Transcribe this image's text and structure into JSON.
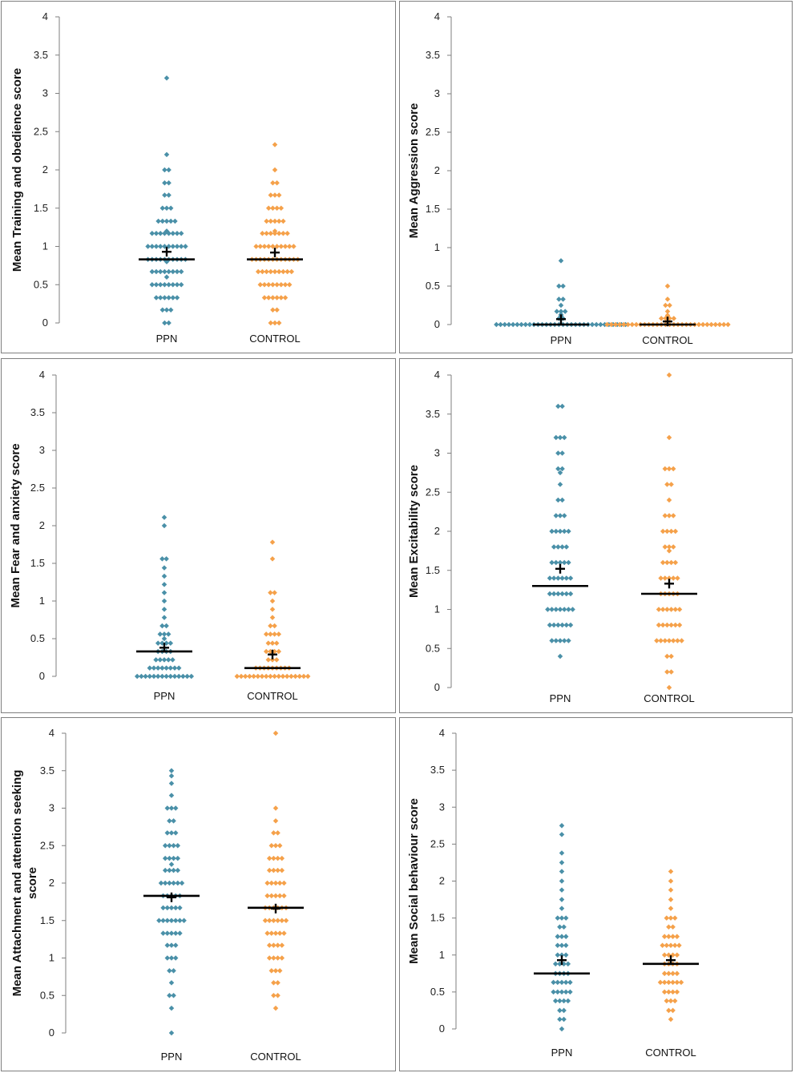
{
  "colors": {
    "ppn": "#4a90a8",
    "control": "#f5a14a",
    "axis": "#7f7f7f",
    "median": "#000000",
    "mean": "#000000"
  },
  "chart_data": [
    {
      "type": "scatter",
      "id": "training",
      "ylabel_lines": [
        "Mean Training and obedience score"
      ],
      "categories": [
        "PPN",
        "CONTROL"
      ],
      "ylim": [
        0,
        4
      ],
      "yticks": [
        "0",
        "0.5",
        "1",
        "1.5",
        "2",
        "2.5",
        "3",
        "3.5",
        "4"
      ],
      "median": [
        0.83,
        0.83
      ],
      "mean": [
        0.93,
        0.92
      ],
      "series": [
        {
          "name": "PPN",
          "values": [
            3.2,
            2.2,
            2.0,
            2.0,
            1.83,
            1.83,
            1.67,
            1.67,
            1.5,
            1.5,
            1.5,
            1.33,
            1.33,
            1.33,
            1.33,
            1.33,
            1.2,
            1.17,
            1.17,
            1.17,
            1.17,
            1.17,
            1.17,
            1.17,
            1.17,
            1.0,
            1.0,
            1.0,
            1.0,
            1.0,
            1.0,
            1.0,
            1.0,
            1.0,
            1.0,
            0.83,
            0.83,
            0.83,
            0.83,
            0.83,
            0.83,
            0.83,
            0.83,
            0.83,
            0.83,
            0.8,
            0.67,
            0.67,
            0.67,
            0.67,
            0.67,
            0.67,
            0.67,
            0.67,
            0.6,
            0.5,
            0.5,
            0.5,
            0.5,
            0.5,
            0.5,
            0.5,
            0.5,
            0.33,
            0.33,
            0.33,
            0.33,
            0.33,
            0.33,
            0.17,
            0.17,
            0.17,
            0.0,
            0.0
          ]
        },
        {
          "name": "CONTROL",
          "values": [
            2.33,
            2.0,
            1.83,
            1.83,
            1.67,
            1.67,
            1.67,
            1.5,
            1.5,
            1.5,
            1.5,
            1.33,
            1.33,
            1.33,
            1.33,
            1.33,
            1.2,
            1.17,
            1.17,
            1.17,
            1.17,
            1.17,
            1.17,
            1.17,
            1.0,
            1.0,
            1.0,
            1.0,
            1.0,
            1.0,
            1.0,
            1.0,
            1.0,
            1.0,
            0.83,
            0.83,
            0.83,
            0.83,
            0.83,
            0.83,
            0.83,
            0.83,
            0.83,
            0.83,
            0.83,
            0.83,
            0.67,
            0.67,
            0.67,
            0.67,
            0.67,
            0.67,
            0.67,
            0.67,
            0.67,
            0.5,
            0.5,
            0.5,
            0.5,
            0.5,
            0.5,
            0.5,
            0.5,
            0.33,
            0.33,
            0.33,
            0.33,
            0.33,
            0.33,
            0.17,
            0.17,
            0.0,
            0.0,
            0.0
          ]
        }
      ]
    },
    {
      "type": "scatter",
      "id": "aggression",
      "ylabel_lines": [
        "Mean Aggression score"
      ],
      "categories": [
        "PPN",
        "CONTROL"
      ],
      "ylim": [
        0,
        4
      ],
      "yticks": [
        "0",
        "0.5",
        "1",
        "1.5",
        "2",
        "2.5",
        "3",
        "3.5",
        "4"
      ],
      "median": [
        0.0,
        0.0
      ],
      "mean": [
        0.07,
        0.04
      ],
      "series": [
        {
          "name": "PPN",
          "values": [
            0.83,
            0.5,
            0.5,
            0.33,
            0.33,
            0.25,
            0.17,
            0.17,
            0.17,
            0.13,
            0.12,
            0.08,
            0.08,
            0.0,
            0.0,
            0.0,
            0.0,
            0.0,
            0.0,
            0.0,
            0.0,
            0.0,
            0.0,
            0.0,
            0.0,
            0.0,
            0.0,
            0.0,
            0.0,
            0.0,
            0.0,
            0.0,
            0.0,
            0.0,
            0.0,
            0.0,
            0.0,
            0.0,
            0.0,
            0.0,
            0.0,
            0.0,
            0.0,
            0.0,
            0.0
          ]
        },
        {
          "name": "CONTROL",
          "values": [
            0.5,
            0.33,
            0.25,
            0.25,
            0.17,
            0.12,
            0.08,
            0.08,
            0.08,
            0.08,
            0.0,
            0.0,
            0.0,
            0.0,
            0.0,
            0.0,
            0.0,
            0.0,
            0.0,
            0.0,
            0.0,
            0.0,
            0.0,
            0.0,
            0.0,
            0.0,
            0.0,
            0.0,
            0.0,
            0.0,
            0.0,
            0.0,
            0.0,
            0.0,
            0.0,
            0.0,
            0.0,
            0.0,
            0.0,
            0.0
          ]
        }
      ]
    },
    {
      "type": "scatter",
      "id": "fear",
      "ylabel_lines": [
        "Mean Fear and anxiety score"
      ],
      "categories": [
        "PPN",
        "CONTROL"
      ],
      "ylim": [
        0,
        4
      ],
      "yticks": [
        "0",
        "0.5",
        "1",
        "1.5",
        "2",
        "2.5",
        "3",
        "3.5",
        "4"
      ],
      "median": [
        0.33,
        0.11
      ],
      "mean": [
        0.38,
        0.29
      ],
      "series": [
        {
          "name": "PPN",
          "values": [
            2.11,
            2.0,
            1.56,
            1.56,
            1.44,
            1.33,
            1.22,
            1.11,
            1.0,
            0.89,
            0.78,
            0.67,
            0.67,
            0.56,
            0.56,
            0.56,
            0.5,
            0.44,
            0.44,
            0.44,
            0.44,
            0.33,
            0.33,
            0.33,
            0.33,
            0.22,
            0.22,
            0.22,
            0.22,
            0.22,
            0.11,
            0.11,
            0.11,
            0.11,
            0.11,
            0.11,
            0.11,
            0.11,
            0.0,
            0.0,
            0.0,
            0.0,
            0.0,
            0.0,
            0.0,
            0.0,
            0.0,
            0.0,
            0.0,
            0.0,
            0.0,
            0.0
          ]
        },
        {
          "name": "CONTROL",
          "values": [
            1.78,
            1.56,
            1.11,
            1.11,
            1.0,
            0.89,
            0.78,
            0.67,
            0.67,
            0.56,
            0.56,
            0.56,
            0.56,
            0.44,
            0.44,
            0.44,
            0.33,
            0.33,
            0.33,
            0.33,
            0.22,
            0.22,
            0.22,
            0.11,
            0.11,
            0.11,
            0.11,
            0.11,
            0.11,
            0.11,
            0.11,
            0.11,
            0.0,
            0.0,
            0.0,
            0.0,
            0.0,
            0.0,
            0.0,
            0.0,
            0.0,
            0.0,
            0.0,
            0.0,
            0.0,
            0.0,
            0.0,
            0.0,
            0.0,
            0.0
          ]
        }
      ]
    },
    {
      "type": "scatter",
      "id": "excitability",
      "ylabel_lines": [
        "Mean Excitability score"
      ],
      "categories": [
        "PPN",
        "CONTROL"
      ],
      "ylim": [
        0,
        4
      ],
      "yticks": [
        "0",
        "0.5",
        "1",
        "1.5",
        "2",
        "2.5",
        "3",
        "3.5",
        "4"
      ],
      "median": [
        1.3,
        1.2
      ],
      "mean": [
        1.52,
        1.33
      ],
      "series": [
        {
          "name": "PPN",
          "values": [
            3.6,
            3.6,
            3.2,
            3.2,
            3.2,
            3.0,
            3.0,
            2.8,
            2.8,
            2.75,
            2.6,
            2.4,
            2.4,
            2.2,
            2.2,
            2.2,
            2.0,
            2.0,
            2.0,
            2.0,
            2.0,
            1.8,
            1.8,
            1.8,
            1.8,
            1.6,
            1.6,
            1.6,
            1.6,
            1.6,
            1.4,
            1.4,
            1.4,
            1.4,
            1.4,
            1.4,
            1.2,
            1.2,
            1.2,
            1.2,
            1.2,
            1.2,
            1.0,
            1.0,
            1.0,
            1.0,
            1.0,
            1.0,
            1.0,
            0.8,
            0.8,
            0.8,
            0.8,
            0.8,
            0.8,
            0.6,
            0.6,
            0.6,
            0.6,
            0.6,
            0.4
          ]
        },
        {
          "name": "CONTROL",
          "values": [
            4.0,
            3.2,
            2.8,
            2.8,
            2.8,
            2.6,
            2.6,
            2.4,
            2.2,
            2.2,
            2.2,
            2.0,
            2.0,
            2.0,
            2.0,
            1.8,
            1.8,
            1.8,
            1.75,
            1.6,
            1.6,
            1.6,
            1.6,
            1.4,
            1.4,
            1.4,
            1.4,
            1.4,
            1.2,
            1.2,
            1.2,
            1.2,
            1.2,
            1.0,
            1.0,
            1.0,
            1.0,
            1.0,
            1.0,
            0.8,
            0.8,
            0.8,
            0.8,
            0.8,
            0.8,
            0.6,
            0.6,
            0.6,
            0.6,
            0.6,
            0.6,
            0.6,
            0.4,
            0.4,
            0.2,
            0.2,
            0.0
          ]
        }
      ]
    },
    {
      "type": "scatter",
      "id": "attachment",
      "ylabel_lines": [
        "Mean Attachment and attention seeking",
        "score"
      ],
      "categories": [
        "PPN",
        "CONTROL"
      ],
      "ylim": [
        0,
        4
      ],
      "yticks": [
        "0",
        "0.5",
        "1",
        "1.5",
        "2",
        "2.5",
        "3",
        "3.5",
        "4"
      ],
      "median": [
        1.83,
        1.67
      ],
      "mean": [
        1.81,
        1.66
      ],
      "series": [
        {
          "name": "PPN",
          "values": [
            3.5,
            3.43,
            3.33,
            3.17,
            3.0,
            3.0,
            3.0,
            2.83,
            2.83,
            2.67,
            2.67,
            2.67,
            2.5,
            2.5,
            2.5,
            2.5,
            2.33,
            2.33,
            2.33,
            2.33,
            2.25,
            2.17,
            2.17,
            2.17,
            2.17,
            2.0,
            2.0,
            2.0,
            2.0,
            2.0,
            2.0,
            1.83,
            1.83,
            1.83,
            1.83,
            1.83,
            1.67,
            1.67,
            1.67,
            1.67,
            1.67,
            1.5,
            1.5,
            1.5,
            1.5,
            1.5,
            1.5,
            1.5,
            1.33,
            1.33,
            1.33,
            1.33,
            1.33,
            1.17,
            1.17,
            1.17,
            1.0,
            1.0,
            1.0,
            0.83,
            0.83,
            0.67,
            0.5,
            0.5,
            0.33,
            0.0
          ]
        },
        {
          "name": "CONTROL",
          "values": [
            4.0,
            3.0,
            2.83,
            2.67,
            2.67,
            2.5,
            2.5,
            2.5,
            2.33,
            2.33,
            2.33,
            2.33,
            2.17,
            2.17,
            2.17,
            2.17,
            2.0,
            2.0,
            2.0,
            2.0,
            2.0,
            1.83,
            1.83,
            1.83,
            1.83,
            1.83,
            1.67,
            1.67,
            1.67,
            1.67,
            1.67,
            1.67,
            1.5,
            1.5,
            1.5,
            1.5,
            1.5,
            1.5,
            1.33,
            1.33,
            1.33,
            1.33,
            1.33,
            1.17,
            1.17,
            1.17,
            1.17,
            1.0,
            1.0,
            1.0,
            1.0,
            0.83,
            0.83,
            0.83,
            0.67,
            0.67,
            0.5,
            0.5,
            0.33
          ]
        }
      ]
    },
    {
      "type": "scatter",
      "id": "social",
      "ylabel_lines": [
        "Mean Social behaviour score"
      ],
      "categories": [
        "PPN",
        "CONTROL"
      ],
      "ylim": [
        0,
        4
      ],
      "yticks": [
        "0",
        "0.5",
        "1",
        "1.5",
        "2",
        "2.5",
        "3",
        "3.5",
        "4"
      ],
      "median": [
        0.75,
        0.88
      ],
      "mean": [
        0.93,
        0.93
      ],
      "series": [
        {
          "name": "PPN",
          "values": [
            2.75,
            2.63,
            2.38,
            2.25,
            2.13,
            2.0,
            1.88,
            1.75,
            1.63,
            1.5,
            1.5,
            1.5,
            1.38,
            1.38,
            1.25,
            1.25,
            1.25,
            1.13,
            1.13,
            1.13,
            1.0,
            1.0,
            1.0,
            0.88,
            0.88,
            0.88,
            0.88,
            0.75,
            0.75,
            0.75,
            0.75,
            0.63,
            0.63,
            0.63,
            0.63,
            0.63,
            0.5,
            0.5,
            0.5,
            0.5,
            0.5,
            0.38,
            0.38,
            0.38,
            0.38,
            0.25,
            0.25,
            0.13,
            0.13,
            0.0
          ]
        },
        {
          "name": "CONTROL",
          "values": [
            2.13,
            2.0,
            1.88,
            1.75,
            1.63,
            1.5,
            1.5,
            1.5,
            1.38,
            1.38,
            1.25,
            1.25,
            1.25,
            1.25,
            1.13,
            1.13,
            1.13,
            1.13,
            1.13,
            1.0,
            1.0,
            1.0,
            1.0,
            0.88,
            0.88,
            0.88,
            0.88,
            0.75,
            0.75,
            0.75,
            0.75,
            0.63,
            0.63,
            0.63,
            0.63,
            0.63,
            0.63,
            0.5,
            0.5,
            0.5,
            0.5,
            0.38,
            0.38,
            0.38,
            0.25,
            0.25,
            0.13
          ]
        }
      ]
    }
  ]
}
